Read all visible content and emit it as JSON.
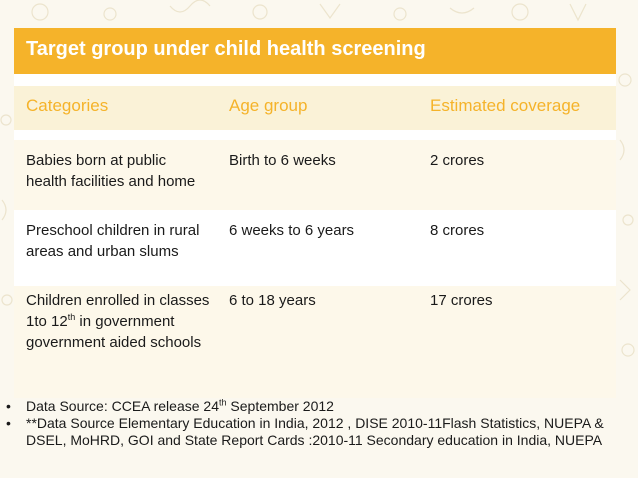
{
  "title": "Target group under child health screening",
  "table": {
    "headers": [
      "Categories",
      "Age group",
      "Estimated coverage"
    ],
    "rows": [
      {
        "category": "Babies born at public health facilities and home",
        "age": "Birth to 6 weeks",
        "coverage": "2 crores"
      },
      {
        "category": "Preschool children in rural areas and urban slums",
        "age": "6 weeks to 6 years",
        "coverage": "8 crores"
      },
      {
        "category_before": "Children enrolled in classes 1to 12",
        "category_sup": "th",
        "category_after": " in government government aided schools",
        "age": "6 to 18 years",
        "coverage": "17 crores"
      }
    ]
  },
  "notes": [
    {
      "bullet": "•",
      "before": "Data Source: CCEA release 24",
      "sup": "th",
      "after": " September 2012"
    },
    {
      "bullet": "•",
      "text": "**Data Source Elementary Education in India, 2012 , DISE 2010-11Flash Statistics, NUEPA & DSEL, MoHRD, GOI and State Report Cards :2010-11 Secondary education in India, NUEPA"
    }
  ],
  "colors": {
    "accent": "#f5b32a",
    "header_bg": "#faf2d7",
    "row_bg": "#fdf8ea",
    "page_bg": "#fbf8ef"
  }
}
